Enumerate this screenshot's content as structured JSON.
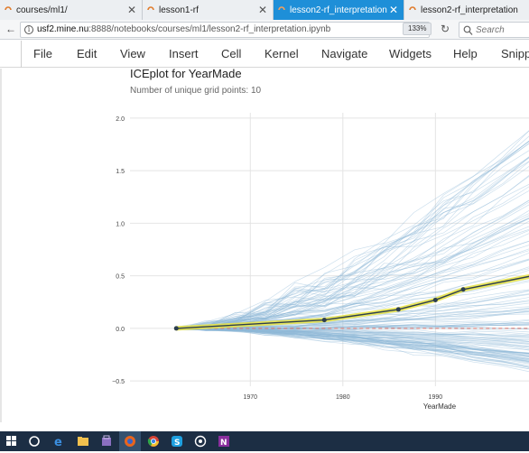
{
  "browser": {
    "tabs": [
      {
        "label": "courses/ml1/",
        "active": false
      },
      {
        "label": "lesson1-rf",
        "active": false
      },
      {
        "label": "lesson2-rf_interpretation",
        "active": true
      },
      {
        "label": "lesson2-rf_interpretation",
        "active": false
      }
    ],
    "url_host": "usf2.mine.nu",
    "url_path": ":8888/notebooks/courses/ml1/lesson2-rf_interpretation.ipynb",
    "zoom": "133%",
    "search_placeholder": "Search"
  },
  "jupyter_menu": [
    "File",
    "Edit",
    "View",
    "Insert",
    "Cell",
    "Kernel",
    "Navigate",
    "Widgets",
    "Help",
    "Snipp"
  ],
  "output": {
    "title": "ICEplot for YearMade",
    "subtitle": "Number of unique grid points: 10"
  },
  "chart_data": {
    "type": "line",
    "title": "ICEplot for YearMade",
    "subtitle": "Number of unique grid points: 10",
    "xlabel": "YearMade",
    "ylabel": "",
    "x_ticks": [
      1970,
      1980,
      1990
    ],
    "y_ticks": [
      2.0,
      1.5,
      1.0,
      0.5,
      0.0,
      -0.5
    ],
    "y_tick_labels": [
      "2.0",
      "1.5",
      "1.0",
      "0.5",
      "0.0",
      "−0.5"
    ],
    "xlim": [
      1957,
      2000.5
    ],
    "ylim": [
      -0.55,
      2.05
    ],
    "grid": true,
    "series": [
      {
        "role": "average",
        "x": [
          1962,
          1978,
          1986,
          1990,
          1993
        ],
        "y": [
          0.0,
          0.08,
          0.18,
          0.27,
          0.37
        ]
      }
    ],
    "ice_line_count": 140,
    "colors": {
      "ice_lines": "#8db8d8",
      "average_line": "#2c3e50",
      "average_glow": "#e8e34a",
      "zero_line": "#d9736b"
    }
  },
  "taskbar": {
    "icons": [
      "windows-start-icon",
      "cortana-icon",
      "edge-icon",
      "file-explorer-icon",
      "store-icon",
      "firefox-icon",
      "chrome-icon",
      "skype-icon",
      "app-icon",
      "onenote-icon"
    ]
  }
}
